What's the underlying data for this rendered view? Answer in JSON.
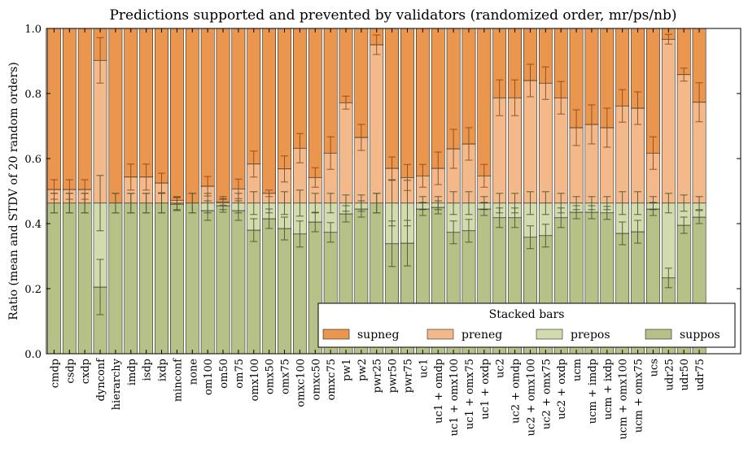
{
  "chart_data": {
    "type": "bar",
    "stacked": true,
    "title": "Predictions supported and prevented by validators (randomized order, mr/ps/nb)",
    "xlabel": "",
    "ylabel": "Ratio (mean and STDV of 20 random orders)",
    "ylim": [
      0,
      1.0
    ],
    "yticks": [
      "0.0",
      "0.2",
      "0.4",
      "0.6",
      "0.8",
      "1.0"
    ],
    "grid": false,
    "legend": {
      "title": "Stacked bars",
      "placement": "lower-right"
    },
    "categories": [
      "cmdp",
      "csdp",
      "cxdp",
      "dynconf",
      "hierarchy",
      "imdp",
      "isdp",
      "ixdp",
      "minconf",
      "none",
      "om100",
      "om50",
      "om75",
      "omx100",
      "omx50",
      "omx75",
      "omxc100",
      "omxc50",
      "omxc75",
      "pw1",
      "pw2",
      "pwr25",
      "pwr50",
      "pwr75",
      "uc1",
      "uc1 + omdp",
      "uc1 + omx100",
      "uc1 + omx75",
      "uc1 + oxdp",
      "uc2",
      "uc2 + omdp",
      "uc2 + omx100",
      "uc2 + omx75",
      "uc2 + oxdp",
      "ucm",
      "ucm + imdp",
      "ucm + ixdp",
      "ucm + omx100",
      "ucm + omx75",
      "ucs",
      "udr25",
      "udr50",
      "udr75"
    ],
    "positive_total": 0.463,
    "series": [
      {
        "name": "supneg",
        "color": "#eb964f",
        "values": [
          0.495,
          0.495,
          0.495,
          0.098,
          0.537,
          0.457,
          0.457,
          0.475,
          0.528,
          0.537,
          0.485,
          0.533,
          0.493,
          0.417,
          0.507,
          0.432,
          0.368,
          0.458,
          0.383,
          0.228,
          0.335,
          0.05,
          0.43,
          0.458,
          0.453,
          0.43,
          0.37,
          0.355,
          0.453,
          0.213,
          0.213,
          0.16,
          0.168,
          0.213,
          0.305,
          0.295,
          0.305,
          0.238,
          0.245,
          0.383,
          0.033,
          0.142,
          0.227
        ],
        "errors": [
          0.03,
          0.03,
          0.03,
          0.07,
          0,
          0.04,
          0.04,
          0.03,
          0.01,
          0,
          0.03,
          0.01,
          0.03,
          0.04,
          0.01,
          0.04,
          0.045,
          0.03,
          0.05,
          0.02,
          0.04,
          0.03,
          0.035,
          0.04,
          0.035,
          0.05,
          0.06,
          0.05,
          0.035,
          0.055,
          0.055,
          0.05,
          0.05,
          0.05,
          0.055,
          0.06,
          0.06,
          0.05,
          0.05,
          0.05,
          0.015,
          0.02,
          0.06
        ]
      },
      {
        "name": "preneg",
        "color": "#f3b98a",
        "values": [
          0.042,
          0.042,
          0.042,
          0.439,
          0,
          0.08,
          0.08,
          0.062,
          0.009,
          0,
          0.052,
          0.004,
          0.044,
          0.12,
          0.03,
          0.105,
          0.169,
          0.079,
          0.154,
          0.309,
          0.202,
          0.487,
          0.107,
          0.079,
          0.084,
          0.107,
          0.167,
          0.182,
          0.084,
          0.324,
          0.324,
          0.377,
          0.369,
          0.324,
          0.232,
          0.242,
          0.232,
          0.299,
          0.292,
          0.154,
          0.504,
          0.395,
          0.31
        ],
        "errors": [
          0.03,
          0.03,
          0.03,
          0.07,
          0,
          0.04,
          0.04,
          0.03,
          0.01,
          0,
          0.03,
          0.01,
          0.03,
          0.04,
          0.01,
          0.04,
          0.045,
          0.03,
          0.05,
          0.02,
          0.04,
          0.03,
          0.035,
          0.04,
          0.035,
          0.05,
          0.06,
          0.05,
          0.035,
          0.055,
          0.055,
          0.05,
          0.05,
          0.05,
          0.055,
          0.06,
          0.06,
          0.05,
          0.05,
          0.05,
          0.015,
          0.02,
          0.06
        ]
      },
      {
        "name": "prepos",
        "color": "#d1dbad",
        "values": [
          0,
          0,
          0,
          0.258,
          0,
          0,
          0,
          0,
          0.003,
          0,
          0.023,
          0.008,
          0.023,
          0.083,
          0.048,
          0.078,
          0.095,
          0.058,
          0.09,
          0.033,
          0.018,
          0,
          0.125,
          0.123,
          0.018,
          0.013,
          0.09,
          0.085,
          0.018,
          0.045,
          0.045,
          0.105,
          0.1,
          0.045,
          0.028,
          0.028,
          0.03,
          0.093,
          0.088,
          0.018,
          0.23,
          0.068,
          0.043
        ],
        "errors": [
          0.03,
          0.03,
          0.03,
          0.085,
          0.03,
          0.03,
          0.03,
          0.03,
          0.02,
          0.03,
          0.03,
          0.02,
          0.03,
          0.035,
          0.03,
          0.035,
          0.04,
          0.03,
          0.03,
          0.025,
          0.025,
          0.03,
          0.07,
          0.07,
          0.02,
          0.02,
          0.035,
          0.035,
          0.02,
          0.03,
          0.03,
          0.035,
          0.035,
          0.03,
          0.02,
          0.02,
          0.02,
          0.035,
          0.035,
          0.02,
          0.03,
          0.025,
          0.02
        ]
      },
      {
        "name": "suppos",
        "color": "#b5c186",
        "values": [
          0.463,
          0.463,
          0.463,
          0.205,
          0.463,
          0.463,
          0.463,
          0.463,
          0.46,
          0.463,
          0.44,
          0.455,
          0.44,
          0.38,
          0.415,
          0.385,
          0.368,
          0.405,
          0.373,
          0.43,
          0.445,
          0.463,
          0.338,
          0.34,
          0.445,
          0.45,
          0.373,
          0.378,
          0.445,
          0.418,
          0.418,
          0.358,
          0.363,
          0.418,
          0.435,
          0.435,
          0.433,
          0.37,
          0.375,
          0.445,
          0.233,
          0.395,
          0.42
        ],
        "errors": [
          0.03,
          0.03,
          0.03,
          0.085,
          0.03,
          0.03,
          0.03,
          0.03,
          0.02,
          0.03,
          0.03,
          0.02,
          0.03,
          0.035,
          0.03,
          0.035,
          0.04,
          0.03,
          0.03,
          0.025,
          0.025,
          0.03,
          0.07,
          0.07,
          0.02,
          0.02,
          0.035,
          0.035,
          0.02,
          0.03,
          0.03,
          0.035,
          0.035,
          0.03,
          0.02,
          0.02,
          0.02,
          0.035,
          0.035,
          0.02,
          0.03,
          0.025,
          0.02
        ]
      }
    ]
  }
}
